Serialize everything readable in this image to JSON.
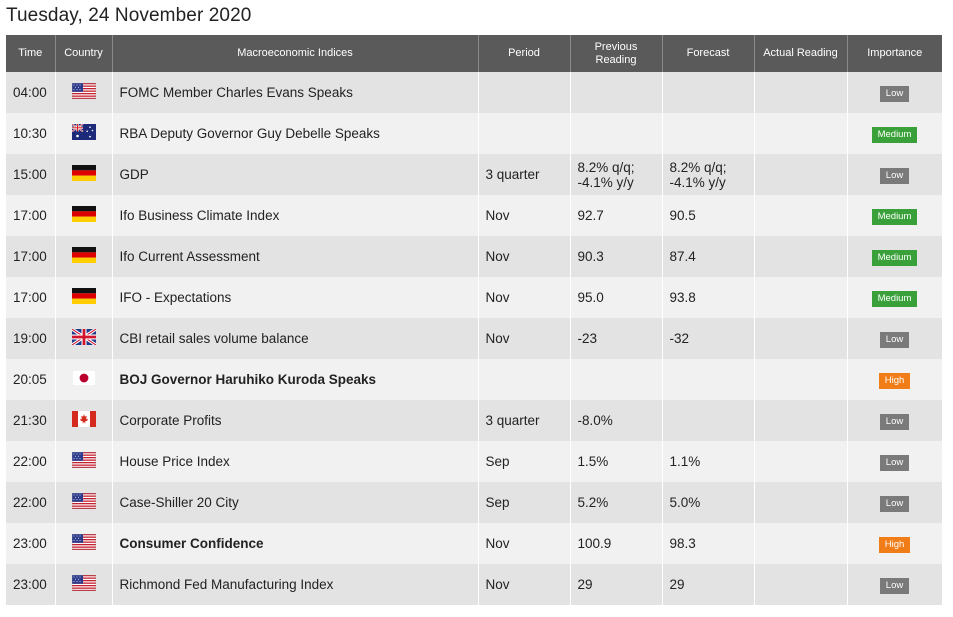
{
  "title": "Tuesday, 24 November 2020",
  "columns": {
    "time": "Time",
    "country": "Country",
    "indices": "Macroeconomic Indices",
    "period": "Period",
    "previous_line1": "Previous",
    "previous_line2": "Reading",
    "forecast": "Forecast",
    "actual": "Actual Reading",
    "importance": "Importance"
  },
  "importance_colors": {
    "Low": "#7a7a7a",
    "Medium": "#3aa13a",
    "High": "#f07d18"
  },
  "rows": [
    {
      "time": "04:00",
      "flag": "us-flag-icon",
      "event": "FOMC Member Charles Evans Speaks",
      "bold": false,
      "period": "",
      "previous": [
        "",
        ""
      ],
      "forecast": [
        "",
        ""
      ],
      "actual": "",
      "importance": "Low"
    },
    {
      "time": "10:30",
      "flag": "au-flag-icon",
      "event": "RBA Deputy Governor Guy Debelle Speaks",
      "bold": false,
      "period": "",
      "previous": [
        "",
        ""
      ],
      "forecast": [
        "",
        ""
      ],
      "actual": "",
      "importance": "Medium"
    },
    {
      "time": "15:00",
      "flag": "de-flag-icon",
      "event": "GDP",
      "bold": false,
      "period": "3 quarter",
      "previous": [
        "8.2% q/q;",
        "-4.1% y/y"
      ],
      "forecast": [
        "8.2% q/q;",
        "-4.1% y/y"
      ],
      "actual": "",
      "importance": "Low"
    },
    {
      "time": "17:00",
      "flag": "de-flag-icon",
      "event": "Ifo Business Climate Index",
      "bold": false,
      "period": "Nov",
      "previous": [
        "92.7",
        ""
      ],
      "forecast": [
        "90.5",
        ""
      ],
      "actual": "",
      "importance": "Medium"
    },
    {
      "time": "17:00",
      "flag": "de-flag-icon",
      "event": "Ifo Current Assessment",
      "bold": false,
      "period": "Nov",
      "previous": [
        "90.3",
        ""
      ],
      "forecast": [
        "87.4",
        ""
      ],
      "actual": "",
      "importance": "Medium"
    },
    {
      "time": "17:00",
      "flag": "de-flag-icon",
      "event": "IFO - Expectations",
      "bold": false,
      "period": "Nov",
      "previous": [
        "95.0",
        ""
      ],
      "forecast": [
        "93.8",
        ""
      ],
      "actual": "",
      "importance": "Medium"
    },
    {
      "time": "19:00",
      "flag": "gb-flag-icon",
      "event": "CBI retail sales volume balance",
      "bold": false,
      "period": "Nov",
      "previous": [
        "-23",
        ""
      ],
      "forecast": [
        "-32",
        ""
      ],
      "actual": "",
      "importance": "Low"
    },
    {
      "time": "20:05",
      "flag": "jp-flag-icon",
      "event": "BOJ Governor Haruhiko Kuroda Speaks",
      "bold": true,
      "period": "",
      "previous": [
        "",
        ""
      ],
      "forecast": [
        "",
        ""
      ],
      "actual": "",
      "importance": "High"
    },
    {
      "time": "21:30",
      "flag": "ca-flag-icon",
      "event": "Corporate Profits",
      "bold": false,
      "period": "3 quarter",
      "previous": [
        "-8.0%",
        ""
      ],
      "forecast": [
        "",
        ""
      ],
      "actual": "",
      "importance": "Low"
    },
    {
      "time": "22:00",
      "flag": "us-flag-icon",
      "event": "House Price Index",
      "bold": false,
      "period": "Sep",
      "previous": [
        "1.5%",
        ""
      ],
      "forecast": [
        "1.1%",
        ""
      ],
      "actual": "",
      "importance": "Low"
    },
    {
      "time": "22:00",
      "flag": "us-flag-icon",
      "event": "Case-Shiller 20 City",
      "bold": false,
      "period": "Sep",
      "previous": [
        "5.2%",
        ""
      ],
      "forecast": [
        "5.0%",
        ""
      ],
      "actual": "",
      "importance": "Low"
    },
    {
      "time": "23:00",
      "flag": "us-flag-icon",
      "event": "Consumer Confidence",
      "bold": true,
      "period": "Nov",
      "previous": [
        "100.9",
        ""
      ],
      "forecast": [
        "98.3",
        ""
      ],
      "actual": "",
      "importance": "High"
    },
    {
      "time": "23:00",
      "flag": "us-flag-icon",
      "event": "Richmond Fed Manufacturing Index",
      "bold": false,
      "period": "Nov",
      "previous": [
        "29",
        ""
      ],
      "forecast": [
        "29",
        ""
      ],
      "actual": "",
      "importance": "Low"
    }
  ]
}
